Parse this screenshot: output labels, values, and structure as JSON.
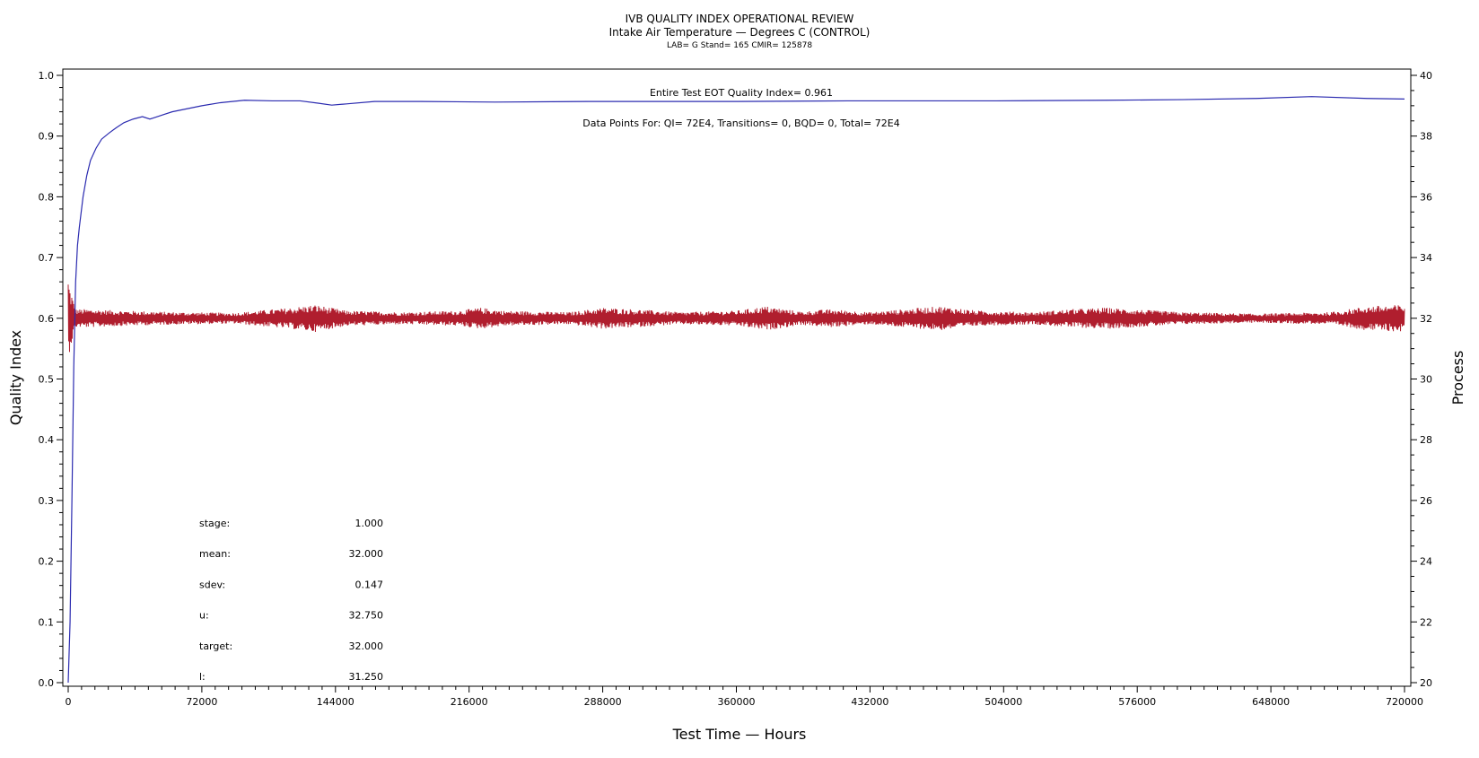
{
  "chart_data": {
    "type": "line",
    "title": "IVB QUALITY INDEX OPERATIONAL REVIEW",
    "subtitle": "Intake Air Temperature — Degrees C (CONTROL)",
    "subtitle2": "LAB= G Stand= 165 CMIR= 125878",
    "xlabel": "Test Time — Hours",
    "ylabel_left": "Quality Index",
    "ylabel_right": "Process",
    "xlim": [
      0,
      720000
    ],
    "ylim_left": [
      0.0,
      1.0
    ],
    "ylim_right": [
      20,
      40
    ],
    "x_ticks": [
      "0",
      "72000",
      "144000",
      "216000",
      "288000",
      "360000",
      "432000",
      "504000",
      "576000",
      "648000",
      "720000"
    ],
    "y_ticks_left": [
      "0.0",
      "0.1",
      "0.2",
      "0.3",
      "0.4",
      "0.5",
      "0.6",
      "0.7",
      "0.8",
      "0.9",
      "1.0"
    ],
    "y_ticks_right": [
      "20",
      "22",
      "24",
      "26",
      "28",
      "30",
      "32",
      "34",
      "36",
      "38",
      "40"
    ],
    "annotation_qi": "Entire Test EOT Quality Index=   0.961",
    "annotation_points": "Data Points For: QI=  72E4, Transitions=     0, BQD=     0, Total=  72E4",
    "stats": [
      {
        "label": "stage:",
        "value": "1.000"
      },
      {
        "label": "mean:",
        "value": "32.000"
      },
      {
        "label": "sdev:",
        "value": "0.147"
      },
      {
        "label": "u:",
        "value": "32.750"
      },
      {
        "label": "target:",
        "value": "32.000"
      },
      {
        "label": "l:",
        "value": "31.250"
      }
    ],
    "colors": {
      "quality_index": "#2b2bb0",
      "process": "#b01e2e"
    },
    "series": [
      {
        "axis": "left",
        "color": "#2b2bb0",
        "x": [
          0,
          1000,
          2000,
          3000,
          4000,
          5000,
          6000,
          8000,
          10000,
          12000,
          15000,
          18000,
          22000,
          26000,
          30000,
          35000,
          40000,
          44000,
          46000,
          50000,
          56000,
          64000,
          72000,
          82000,
          95000,
          110000,
          125000,
          135000,
          142000,
          150000,
          165000,
          190000,
          230000,
          280000,
          320000,
          360000,
          420000,
          460000,
          500000,
          560000,
          600000,
          640000,
          670000,
          700000,
          720000
        ],
        "y": [
          0.0,
          0.1,
          0.3,
          0.52,
          0.66,
          0.72,
          0.75,
          0.8,
          0.835,
          0.86,
          0.88,
          0.895,
          0.905,
          0.914,
          0.922,
          0.928,
          0.932,
          0.928,
          0.93,
          0.934,
          0.94,
          0.945,
          0.95,
          0.955,
          0.959,
          0.958,
          0.958,
          0.954,
          0.951,
          0.953,
          0.957,
          0.957,
          0.956,
          0.957,
          0.957,
          0.957,
          0.958,
          0.958,
          0.958,
          0.959,
          0.96,
          0.962,
          0.965,
          0.962,
          0.961
        ]
      },
      {
        "axis": "right",
        "color": "#b01e2e",
        "mean": 32.0,
        "x": [
          0,
          1000,
          2000,
          3000,
          4000,
          6000,
          10000,
          30000,
          60000,
          90000,
          120000,
          133000,
          150000,
          180000,
          210000,
          222000,
          235000,
          270000,
          288000,
          305000,
          330000,
          360000,
          376000,
          395000,
          410000,
          432000,
          450000,
          470000,
          490000,
          520000,
          540000,
          560000,
          600000,
          640000,
          680000,
          700000,
          720000
        ],
        "amplitude": [
          1.4,
          1.0,
          0.8,
          0.5,
          0.3,
          0.3,
          0.3,
          0.25,
          0.2,
          0.18,
          0.35,
          0.45,
          0.25,
          0.2,
          0.25,
          0.35,
          0.25,
          0.2,
          0.35,
          0.3,
          0.2,
          0.25,
          0.4,
          0.22,
          0.3,
          0.2,
          0.3,
          0.4,
          0.25,
          0.2,
          0.3,
          0.35,
          0.2,
          0.15,
          0.2,
          0.4,
          0.45
        ]
      }
    ]
  }
}
